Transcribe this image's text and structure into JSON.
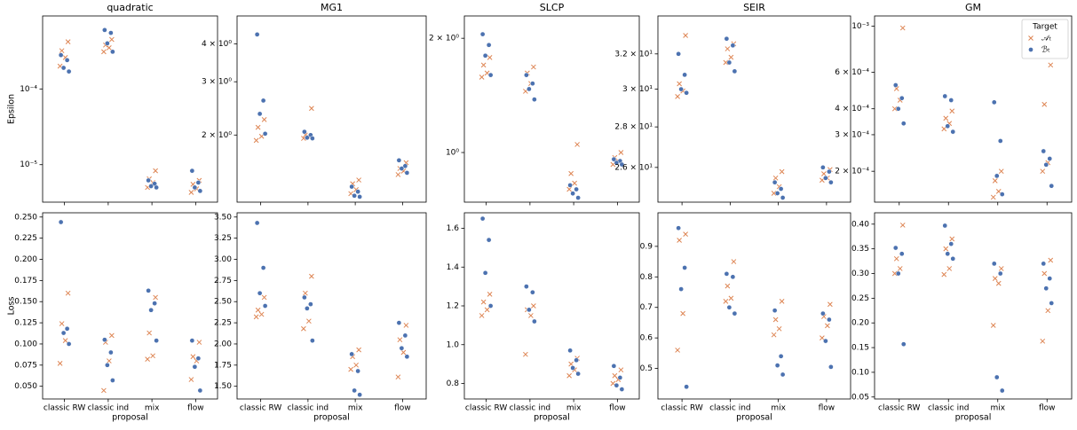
{
  "chart_data": [
    {
      "type": "strip",
      "title": "quadratic",
      "ylabel": "Epsilon",
      "log": true,
      "ylim": [
        3.2e-06,
        0.00092
      ],
      "yticks": [
        {
          "value": 1e-05,
          "label": "10⁻⁵"
        },
        {
          "value": 0.0001,
          "label": "10⁻⁴"
        }
      ],
      "series": [
        {
          "color": "#dd8452",
          "marker": "x",
          "values": [
            [
              0.00042,
              0.00032,
              0.00026,
              0.0002
            ],
            [
              0.00045,
              0.00038,
              0.00035,
              0.00031
            ],
            [
              8.3e-06,
              6.5e-06,
              5.8e-06,
              5e-06
            ],
            [
              6.2e-06,
              5.5e-06,
              4.8e-06,
              4.3e-06
            ]
          ]
        },
        {
          "color": "#4c72b0",
          "marker": "o",
          "values": [
            [
              0.00028,
              0.00024,
              0.00019,
              0.00017
            ],
            [
              0.0006,
              0.00055,
              0.0004,
              0.00031
            ],
            [
              6.2e-06,
              5.6e-06,
              5.2e-06,
              5e-06
            ],
            [
              8.3e-06,
              5.8e-06,
              5e-06,
              4.5e-06
            ]
          ]
        }
      ]
    },
    {
      "type": "strip",
      "title": "MG1",
      "log": true,
      "ylim": [
        1.2,
        4.95
      ],
      "yticks": [
        {
          "value": 2,
          "label": "2 × 10⁰"
        },
        {
          "value": 3,
          "label": "3 × 10⁰"
        },
        {
          "value": 4,
          "label": "4 × 10⁰"
        }
      ],
      "series": [
        {
          "color": "#dd8452",
          "marker": "x",
          "values": [
            [
              2.25,
              2.12,
              1.98,
              1.92
            ],
            [
              2.45,
              2.0,
              1.97,
              1.95
            ],
            [
              1.42,
              1.38,
              1.32,
              1.28
            ],
            [
              1.62,
              1.55,
              1.52,
              1.48
            ]
          ]
        },
        {
          "color": "#4c72b0",
          "marker": "o",
          "values": [
            [
              4.3,
              2.6,
              2.35,
              2.02
            ],
            [
              2.05,
              2.0,
              1.96,
              1.95
            ],
            [
              1.35,
              1.3,
              1.26,
              1.25
            ],
            [
              1.65,
              1.58,
              1.55,
              1.5
            ]
          ]
        }
      ]
    },
    {
      "type": "strip",
      "title": "SLCP",
      "log": true,
      "ylim": [
        0.74,
        2.29
      ],
      "yticks": [
        {
          "value": 1,
          "label": "10⁰"
        },
        {
          "value": 2,
          "label": "2 × 10⁰"
        }
      ],
      "series": [
        {
          "color": "#dd8452",
          "marker": "x",
          "values": [
            [
              1.78,
              1.7,
              1.62,
              1.58
            ],
            [
              1.68,
              1.62,
              1.52,
              1.45
            ],
            [
              1.05,
              0.88,
              0.83,
              0.8
            ],
            [
              1.0,
              0.97,
              0.95,
              0.93
            ]
          ]
        },
        {
          "color": "#4c72b0",
          "marker": "o",
          "values": [
            [
              2.05,
              1.92,
              1.8,
              1.6
            ],
            [
              1.6,
              1.52,
              1.47,
              1.38
            ],
            [
              0.82,
              0.8,
              0.78,
              0.76
            ],
            [
              0.96,
              0.95,
              0.94,
              0.93
            ]
          ]
        }
      ]
    },
    {
      "type": "strip",
      "title": "SEIR",
      "log": true,
      "ylim": [
        24.4,
        34.3
      ],
      "yticks": [
        {
          "value": 26,
          "label": "2.6 × 10¹"
        },
        {
          "value": 28,
          "label": "2.8 × 10¹"
        },
        {
          "value": 30,
          "label": "3 × 10¹"
        },
        {
          "value": 32,
          "label": "3.2 × 10¹"
        }
      ],
      "series": [
        {
          "color": "#dd8452",
          "marker": "x",
          "values": [
            [
              33.1,
              30.3,
              29.9,
              29.6
            ],
            [
              32.6,
              32.3,
              31.8,
              31.5
            ],
            [
              25.8,
              25.5,
              25.1,
              24.8
            ],
            [
              25.9,
              25.7,
              25.5,
              25.4
            ]
          ]
        },
        {
          "color": "#4c72b0",
          "marker": "o",
          "values": [
            [
              32.0,
              30.8,
              30.0,
              29.8
            ],
            [
              32.9,
              32.5,
              31.5,
              31.0
            ],
            [
              25.3,
              25.0,
              24.8,
              24.6
            ],
            [
              26.0,
              25.8,
              25.5,
              25.3
            ]
          ]
        }
      ]
    },
    {
      "type": "strip",
      "title": "GM",
      "log": true,
      "ylim": [
        0.000142,
        0.00112
      ],
      "yticks": [
        {
          "value": 0.0002,
          "label": "2 × 10⁻⁴"
        },
        {
          "value": 0.0003,
          "label": "3 × 10⁻⁴"
        },
        {
          "value": 0.0004,
          "label": "4 × 10⁻⁴"
        },
        {
          "value": 0.0006,
          "label": "6 × 10⁻⁴"
        },
        {
          "value": 0.001,
          "label": "10⁻³"
        }
      ],
      "legend_title": "Target",
      "legend": "upper right",
      "series": [
        {
          "name": "𝒜ₜ",
          "color": "#dd8452",
          "marker": "x",
          "values": [
            [
              0.00098,
              0.0005,
              0.00044,
              0.0004
            ],
            [
              0.00039,
              0.00036,
              0.00034,
              0.00032
            ],
            [
              0.0002,
              0.00018,
              0.00016,
              0.00015
            ],
            [
              0.00065,
              0.00042,
              0.00022,
              0.0002
            ]
          ]
        },
        {
          "name": "ℬₜ",
          "color": "#4c72b0",
          "marker": "o",
          "values": [
            [
              0.00052,
              0.00045,
              0.0004,
              0.00034
            ],
            [
              0.00046,
              0.00044,
              0.00033,
              0.00031
            ],
            [
              0.00043,
              0.00028,
              0.00019,
              0.000155
            ],
            [
              0.00025,
              0.00023,
              0.000215,
              0.00017
            ]
          ]
        }
      ]
    },
    {
      "type": "strip",
      "ylabel": "Loss",
      "xlabel": "proposal",
      "categories": [
        "classic RW",
        "classic ind",
        "mix",
        "flow"
      ],
      "ylim": [
        0.035,
        0.255
      ],
      "yticks": [
        {
          "value": 0.05,
          "label": "0.050"
        },
        {
          "value": 0.075,
          "label": "0.075"
        },
        {
          "value": 0.1,
          "label": "0.100"
        },
        {
          "value": 0.125,
          "label": "0.125"
        },
        {
          "value": 0.15,
          "label": "0.150"
        },
        {
          "value": 0.175,
          "label": "0.175"
        },
        {
          "value": 0.2,
          "label": "0.200"
        },
        {
          "value": 0.225,
          "label": "0.225"
        },
        {
          "value": 0.25,
          "label": "0.250"
        }
      ],
      "series": [
        {
          "color": "#dd8452",
          "marker": "x",
          "values": [
            [
              0.16,
              0.124,
              0.104,
              0.077
            ],
            [
              0.11,
              0.102,
              0.08,
              0.045
            ],
            [
              0.155,
              0.113,
              0.086,
              0.082
            ],
            [
              0.102,
              0.085,
              0.08,
              0.058
            ]
          ]
        },
        {
          "color": "#4c72b0",
          "marker": "o",
          "values": [
            [
              0.244,
              0.118,
              0.113,
              0.1
            ],
            [
              0.105,
              0.09,
              0.075,
              0.057
            ],
            [
              0.163,
              0.148,
              0.14,
              0.104
            ],
            [
              0.104,
              0.083,
              0.073,
              0.045
            ]
          ]
        }
      ]
    },
    {
      "type": "strip",
      "xlabel": "proposal",
      "categories": [
        "classic RW",
        "classic ind",
        "mix",
        "flow"
      ],
      "ylim": [
        1.35,
        3.55
      ],
      "yticks": [
        {
          "value": 1.5,
          "label": "1.50"
        },
        {
          "value": 1.75,
          "label": "1.75"
        },
        {
          "value": 2,
          "label": "2.00"
        },
        {
          "value": 2.25,
          "label": "2.25"
        },
        {
          "value": 2.5,
          "label": "2.50"
        },
        {
          "value": 2.75,
          "label": "2.75"
        },
        {
          "value": 3,
          "label": "3.00"
        },
        {
          "value": 3.25,
          "label": "3.25"
        },
        {
          "value": 3.5,
          "label": "3.50"
        }
      ],
      "series": [
        {
          "color": "#dd8452",
          "marker": "x",
          "values": [
            [
              2.55,
              2.4,
              2.35,
              2.32
            ],
            [
              2.8,
              2.6,
              2.27,
              2.18
            ],
            [
              1.93,
              1.85,
              1.75,
              1.7
            ],
            [
              2.22,
              2.05,
              1.9,
              1.61
            ]
          ]
        },
        {
          "color": "#4c72b0",
          "marker": "o",
          "values": [
            [
              3.43,
              2.9,
              2.6,
              2.45
            ],
            [
              2.55,
              2.47,
              2.42,
              2.04
            ],
            [
              1.88,
              1.68,
              1.45,
              1.4
            ],
            [
              2.25,
              2.1,
              1.95,
              1.85
            ]
          ]
        }
      ]
    },
    {
      "type": "strip",
      "xlabel": "proposal",
      "categories": [
        "classic RW",
        "classic ind",
        "mix",
        "flow"
      ],
      "ylim": [
        0.72,
        1.68
      ],
      "yticks": [
        0.8,
        {
          "value": 1,
          "label": "1.0"
        },
        1.2,
        1.4,
        1.6
      ],
      "series": [
        {
          "color": "#dd8452",
          "marker": "x",
          "values": [
            [
              1.26,
              1.22,
              1.18,
              1.15
            ],
            [
              1.2,
              1.18,
              1.15,
              0.95
            ],
            [
              0.93,
              0.9,
              0.87,
              0.84
            ],
            [
              0.87,
              0.84,
              0.82,
              0.8
            ]
          ]
        },
        {
          "color": "#4c72b0",
          "marker": "o",
          "values": [
            [
              1.65,
              1.54,
              1.37,
              1.2
            ],
            [
              1.3,
              1.27,
              1.18,
              1.12
            ],
            [
              0.97,
              0.92,
              0.88,
              0.85
            ],
            [
              0.89,
              0.83,
              0.79,
              0.77
            ]
          ]
        }
      ]
    },
    {
      "type": "strip",
      "xlabel": "proposal",
      "categories": [
        "classic RW",
        "classic ind",
        "mix",
        "flow"
      ],
      "ylim": [
        0.4,
        1.01
      ],
      "yticks": [
        0.5,
        0.6,
        0.7,
        0.8,
        0.9
      ],
      "series": [
        {
          "color": "#dd8452",
          "marker": "x",
          "values": [
            [
              0.94,
              0.92,
              0.68,
              0.56
            ],
            [
              0.85,
              0.77,
              0.73,
              0.72
            ],
            [
              0.72,
              0.66,
              0.63,
              0.61
            ],
            [
              0.71,
              0.67,
              0.64,
              0.6
            ]
          ]
        },
        {
          "color": "#4c72b0",
          "marker": "o",
          "values": [
            [
              0.96,
              0.83,
              0.76,
              0.44
            ],
            [
              0.81,
              0.8,
              0.7,
              0.68
            ],
            [
              0.69,
              0.54,
              0.51,
              0.48
            ],
            [
              0.68,
              0.66,
              0.59,
              0.505
            ]
          ]
        }
      ]
    },
    {
      "type": "strip",
      "xlabel": "proposal",
      "categories": [
        "classic RW",
        "classic ind",
        "mix",
        "flow"
      ],
      "ylim": [
        0.046,
        0.423
      ],
      "yticks": [
        0.05,
        {
          "value": 0.1,
          "label": "0.10"
        },
        0.15,
        {
          "value": 0.2,
          "label": "0.20"
        },
        0.25,
        {
          "value": 0.3,
          "label": "0.30"
        },
        0.35,
        {
          "value": 0.4,
          "label": "0.40"
        }
      ],
      "series": [
        {
          "color": "#dd8452",
          "marker": "x",
          "values": [
            [
              0.398,
              0.33,
              0.31,
              0.3
            ],
            [
              0.37,
              0.35,
              0.31,
              0.298
            ],
            [
              0.31,
              0.29,
              0.28,
              0.195
            ],
            [
              0.327,
              0.3,
              0.225,
              0.163
            ]
          ]
        },
        {
          "color": "#4c72b0",
          "marker": "o",
          "values": [
            [
              0.352,
              0.34,
              0.3,
              0.157
            ],
            [
              0.397,
              0.36,
              0.34,
              0.33
            ],
            [
              0.32,
              0.3,
              0.09,
              0.063
            ],
            [
              0.32,
              0.29,
              0.27,
              0.24
            ]
          ]
        }
      ]
    }
  ]
}
